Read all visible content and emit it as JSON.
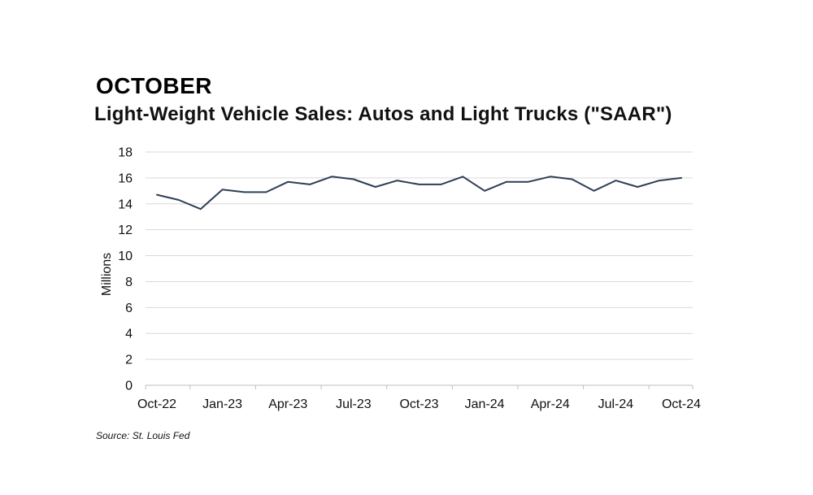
{
  "header": {
    "heading": "OCTOBER",
    "source": "Source: St. Louis Fed"
  },
  "chart_data": {
    "type": "line",
    "title": "Light-Weight Vehicle Sales: Autos and Light Trucks (\"SAAR\")",
    "ylabel": "Millions",
    "xlabel": "",
    "ylim": [
      0,
      18
    ],
    "yticks": [
      0,
      2,
      4,
      6,
      8,
      10,
      12,
      14,
      16,
      18
    ],
    "grid": true,
    "x_tick_labels": [
      "Oct-22",
      "Jan-23",
      "Apr-23",
      "Jul-23",
      "Oct-23",
      "Jan-24",
      "Apr-24",
      "Jul-24",
      "Oct-24"
    ],
    "x": [
      "2022-10",
      "2022-11",
      "2022-12",
      "2023-01",
      "2023-02",
      "2023-03",
      "2023-04",
      "2023-05",
      "2023-06",
      "2023-07",
      "2023-08",
      "2023-09",
      "2023-10",
      "2023-11",
      "2023-12",
      "2024-01",
      "2024-02",
      "2024-03",
      "2024-04",
      "2024-05",
      "2024-06",
      "2024-07",
      "2024-08",
      "2024-09",
      "2024-10"
    ],
    "series": [
      {
        "values": [
          14.7,
          14.3,
          13.6,
          15.1,
          14.9,
          14.9,
          15.7,
          15.5,
          16.1,
          15.9,
          15.3,
          15.8,
          15.5,
          15.5,
          16.1,
          15.0,
          15.7,
          15.7,
          16.1,
          15.9,
          15.0,
          15.8,
          15.3,
          15.8,
          16.0
        ],
        "color": "#2e3f54"
      }
    ],
    "colors": {
      "line": "#2e3f54",
      "grid": "#d9d9d9",
      "axis": "#bfbfbf"
    }
  }
}
